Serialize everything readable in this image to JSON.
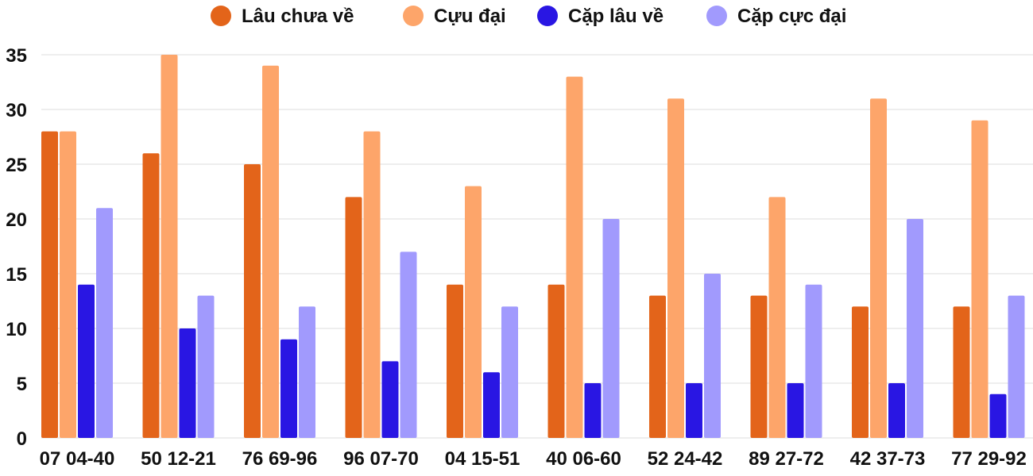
{
  "chart_data": {
    "type": "bar",
    "categories": [
      "07 04-40",
      "50 12-21",
      "76 69-96",
      "96 07-70",
      "04 15-51",
      "40 06-60",
      "52 24-42",
      "89 27-72",
      "42 37-73",
      "77 29-92"
    ],
    "series": [
      {
        "name": "Lâu chưa về",
        "color": "#e3641a",
        "values": [
          28,
          26,
          25,
          22,
          14,
          14,
          13,
          13,
          12,
          12
        ]
      },
      {
        "name": "Cựu đại",
        "color": "#fda56a",
        "values": [
          28,
          35,
          34,
          28,
          23,
          33,
          31,
          22,
          31,
          29
        ]
      },
      {
        "name": "Cặp lâu về",
        "color": "#2916e3",
        "values": [
          14,
          10,
          9,
          7,
          6,
          5,
          5,
          5,
          5,
          4
        ]
      },
      {
        "name": "Cặp cực đại",
        "color": "#a19afd",
        "values": [
          21,
          13,
          12,
          17,
          12,
          20,
          15,
          14,
          20,
          13
        ]
      }
    ],
    "yticks": [
      "0",
      "5",
      "10",
      "15",
      "20",
      "25",
      "30",
      "35"
    ],
    "ylim": [
      0,
      35
    ],
    "grid": true,
    "legend_position": "top"
  }
}
